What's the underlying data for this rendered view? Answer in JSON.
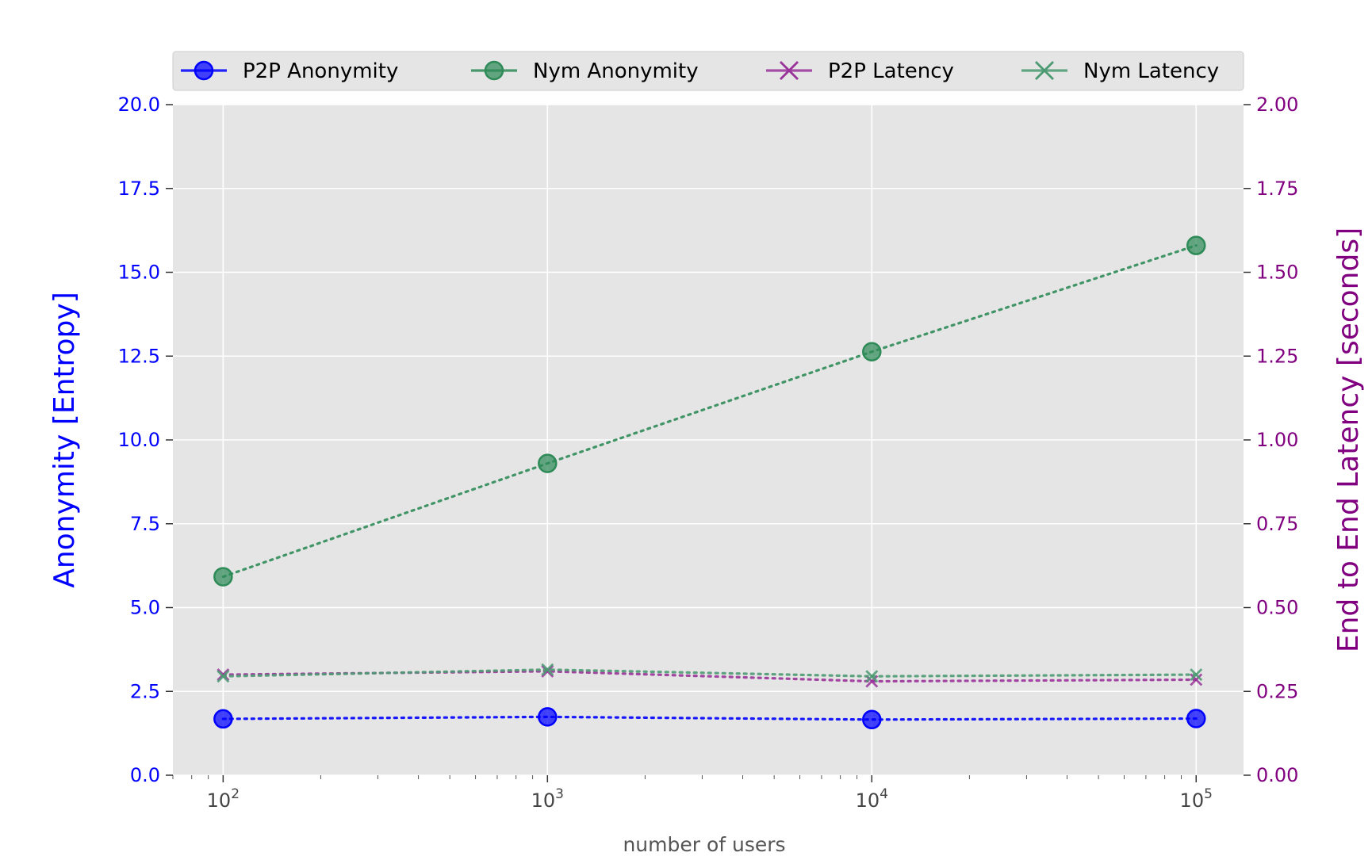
{
  "chart_data": {
    "type": "line",
    "x": [
      100,
      1000,
      10000,
      100000
    ],
    "x_scale": "log",
    "x_tick_bases": [
      "10",
      "10",
      "10",
      "10"
    ],
    "x_tick_exponents": [
      "2",
      "3",
      "4",
      "5"
    ],
    "xlabel": "number of users",
    "xlim": [
      70,
      140000
    ],
    "y_left": {
      "label": "Anonymity [Entropy]",
      "ylim": [
        0,
        20
      ],
      "ticks": [
        "0.0",
        "2.5",
        "5.0",
        "7.5",
        "10.0",
        "12.5",
        "15.0",
        "17.5",
        "20.0"
      ],
      "color": "#0000ff"
    },
    "y_right": {
      "label": "End to End Latency [seconds]",
      "ylim": [
        0,
        2
      ],
      "ticks": [
        "0.00",
        "0.25",
        "0.50",
        "0.75",
        "1.00",
        "1.25",
        "1.50",
        "1.75",
        "2.00"
      ],
      "color": "#800080"
    },
    "series": [
      {
        "name": "P2P Anonymity",
        "axis": "left",
        "marker": "circle",
        "color": "#0000ff",
        "values": [
          1.68,
          1.74,
          1.66,
          1.69
        ]
      },
      {
        "name": "Nym Anonymity",
        "axis": "left",
        "marker": "circle",
        "color": "#2e8b57",
        "values": [
          5.92,
          9.3,
          12.63,
          15.8
        ]
      },
      {
        "name": "P2P Latency",
        "axis": "right",
        "marker": "x",
        "color": "#993399",
        "values": [
          0.3,
          0.31,
          0.28,
          0.285
        ]
      },
      {
        "name": "Nym Latency",
        "axis": "right",
        "marker": "x",
        "color": "#4c9a72",
        "values": [
          0.295,
          0.315,
          0.295,
          0.3
        ]
      }
    ],
    "grid": true,
    "legend_position": "top"
  }
}
